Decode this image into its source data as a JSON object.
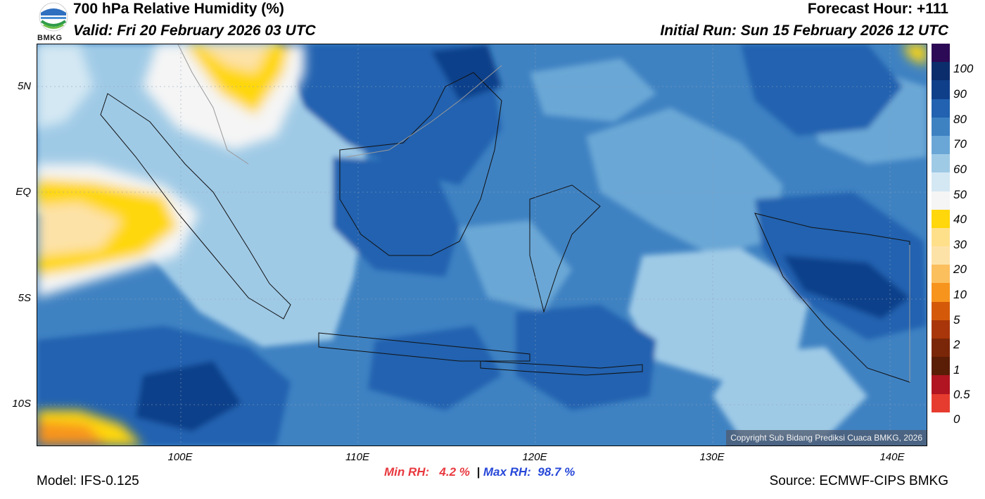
{
  "header": {
    "title": "700 hPa Relative Humidity (%)",
    "valid": "Valid: Fri 20 February 2026 03 UTC",
    "forecast_hour": "Forecast Hour: +111",
    "initial_run": "Initial Run: Sun 15 February 2026 12 UTC",
    "logo_text": "BMKG"
  },
  "map": {
    "lat_labels": [
      "5N",
      "EQ",
      "5S",
      "10S"
    ],
    "lon_labels": [
      "100E",
      "110E",
      "120E",
      "130E",
      "140E"
    ],
    "copyright": "Copyright Sub Bidang Prediksi Cuaca BMKG, 2026"
  },
  "colorbar": {
    "colors": [
      "#2d0a55",
      "#0b2d6b",
      "#103f8a",
      "#2262b0",
      "#3f82c2",
      "#6aa7d6",
      "#9fcae6",
      "#d4e8f3",
      "#f5f5f5",
      "#ffd70a",
      "#ffe08a",
      "#fde2a8",
      "#fbbf5e",
      "#f7941d",
      "#d45a0a",
      "#a8360a",
      "#7a2608",
      "#5a1d06",
      "#b01521",
      "#e63c2f"
    ],
    "labels": [
      "100",
      "90",
      "80",
      "70",
      "60",
      "50",
      "40",
      "30",
      "20",
      "10",
      "5",
      "2",
      "1",
      "0.5",
      "0"
    ]
  },
  "footer": {
    "min_label": "Min RH:",
    "min_value": "4.2 %",
    "separator": "|",
    "max_label": "Max RH:",
    "max_value": "98.7 %",
    "model": "Model: IFS-0.125",
    "source": "Source: ECMWF-CIPS BMKG"
  }
}
